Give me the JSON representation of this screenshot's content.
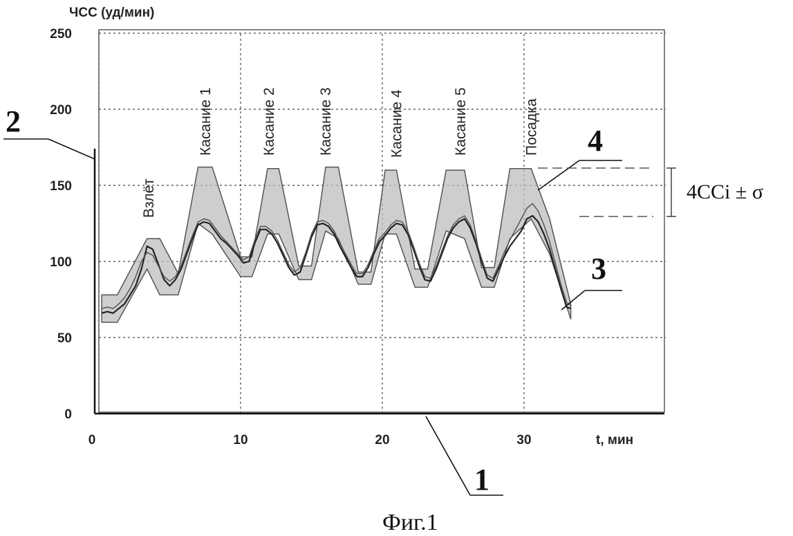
{
  "figure": {
    "caption": "Фиг.1",
    "stat_label": "4CCi ± σ",
    "ref_labels": [
      "1",
      "2",
      "3",
      "4"
    ]
  },
  "chart_data": {
    "type": "line",
    "ylabel": "ЧСС (уд/мин)",
    "xlabel": "t, мин",
    "xlim": [
      0,
      40
    ],
    "ylim": [
      0,
      250
    ],
    "x_ticks": [
      "0",
      "10",
      "20",
      "30"
    ],
    "y_ticks": [
      "0",
      "50",
      "100",
      "150",
      "200",
      "250"
    ],
    "grid": true,
    "annotations": [
      {
        "text": "Взлёт",
        "x": 3.5
      },
      {
        "text": "Касание 1",
        "x": 7.5
      },
      {
        "text": "Касание  2",
        "x": 12
      },
      {
        "text": "Касание 3",
        "x": 16
      },
      {
        "text": "Касание 4",
        "x": 21
      },
      {
        "text": "Касание 5",
        "x": 25.5
      },
      {
        "text": "Посадка",
        "x": 30.5
      }
    ],
    "band": {
      "x": [
        0.2,
        1.3,
        3.4,
        4.3,
        5.6,
        7.0,
        8.0,
        10.0,
        10.8,
        11.9,
        12.7,
        14.1,
        15.0,
        16.0,
        16.9,
        18.3,
        19.2,
        20.2,
        21.0,
        22.3,
        23.2,
        24.5,
        25.8,
        27.0,
        27.9,
        29.0,
        30.5,
        31.8,
        33.3
      ],
      "upper": [
        78,
        78,
        115,
        115,
        92,
        162,
        162,
        103,
        103,
        161,
        161,
        97,
        97,
        162,
        162,
        93,
        93,
        160,
        160,
        95,
        95,
        160,
        160,
        96,
        96,
        161,
        161,
        128,
        72
      ],
      "lower": [
        60,
        60,
        95,
        78,
        78,
        125,
        118,
        90,
        90,
        118,
        118,
        88,
        88,
        120,
        115,
        85,
        85,
        118,
        118,
        83,
        83,
        120,
        115,
        83,
        83,
        115,
        128,
        105,
        62
      ]
    },
    "series": [
      {
        "x": [
          0.2,
          0.6,
          1.0,
          1.4,
          1.8,
          2.2,
          2.6,
          3.0,
          3.4,
          3.8,
          4.2,
          4.6,
          5.0,
          5.4,
          5.8,
          6.2,
          6.6,
          7.0,
          7.4,
          7.8,
          8.2,
          8.6,
          9.0,
          9.4,
          9.8,
          10.2,
          10.6,
          11.0,
          11.4,
          11.8,
          12.2,
          12.6,
          13.0,
          13.4,
          13.8,
          14.2,
          14.6,
          15.0,
          15.4,
          15.8,
          16.2,
          16.6,
          17.0,
          17.4,
          17.8,
          18.2,
          18.6,
          19.0,
          19.4,
          19.8,
          20.2,
          20.6,
          21.0,
          21.4,
          21.8,
          22.2,
          22.6,
          23.0,
          23.4,
          23.8,
          24.2,
          24.6,
          25.0,
          25.4,
          25.8,
          26.2,
          26.6,
          27.0,
          27.4,
          27.8,
          28.2,
          28.6,
          29.0,
          29.4,
          29.8,
          30.2,
          30.6,
          31.0,
          31.4,
          31.8,
          32.2,
          32.6,
          33.0,
          33.3
        ],
        "values": [
          66,
          67,
          66,
          69,
          72,
          78,
          84,
          95,
          110,
          108,
          98,
          88,
          84,
          88,
          95,
          105,
          115,
          124,
          126,
          125,
          120,
          115,
          112,
          108,
          104,
          99,
          100,
          112,
          121,
          121,
          118,
          112,
          104,
          96,
          91,
          93,
          104,
          116,
          124,
          125,
          123,
          118,
          110,
          103,
          96,
          90,
          90,
          96,
          105,
          113,
          117,
          122,
          125,
          124,
          118,
          108,
          97,
          88,
          87,
          95,
          105,
          115,
          122,
          126,
          128,
          122,
          112,
          100,
          89,
          87,
          95,
          103,
          110,
          115,
          120,
          128,
          130,
          126,
          118,
          108,
          95,
          82,
          70,
          69
        ]
      },
      {
        "x": [
          0.2,
          0.6,
          1.0,
          1.4,
          1.8,
          2.2,
          2.6,
          3.0,
          3.4,
          3.8,
          4.2,
          4.6,
          5.0,
          5.4,
          5.8,
          6.2,
          6.6,
          7.0,
          7.4,
          7.8,
          8.2,
          8.6,
          9.0,
          9.4,
          9.8,
          10.2,
          10.6,
          11.0,
          11.4,
          11.8,
          12.2,
          12.6,
          13.0,
          13.4,
          13.8,
          14.2,
          14.6,
          15.0,
          15.4,
          15.8,
          16.2,
          16.6,
          17.0,
          17.4,
          17.8,
          18.2,
          18.6,
          19.0,
          19.4,
          19.8,
          20.2,
          20.6,
          21.0,
          21.4,
          21.8,
          22.2,
          22.6,
          23.0,
          23.4,
          23.8,
          24.2,
          24.6,
          25.0,
          25.4,
          25.8,
          26.2,
          26.6,
          27.0,
          27.4,
          27.8,
          28.2,
          28.6,
          29.0,
          29.4,
          29.8,
          30.2,
          30.6,
          31.0,
          31.4,
          31.8,
          32.2,
          32.6,
          33.0,
          33.3
        ],
        "values": [
          69,
          70,
          69,
          72,
          76,
          82,
          90,
          100,
          106,
          104,
          97,
          90,
          87,
          90,
          97,
          107,
          117,
          126,
          128,
          127,
          122,
          117,
          113,
          109,
          105,
          101,
          103,
          114,
          123,
          123,
          120,
          114,
          106,
          98,
          93,
          96,
          106,
          118,
          126,
          127,
          125,
          120,
          112,
          105,
          98,
          92,
          92,
          98,
          107,
          115,
          119,
          124,
          127,
          126,
          120,
          110,
          99,
          90,
          89,
          97,
          107,
          117,
          124,
          128,
          130,
          124,
          114,
          102,
          91,
          89,
          97,
          106,
          114,
          121,
          128,
          135,
          138,
          133,
          124,
          113,
          99,
          85,
          73,
          71
        ]
      }
    ]
  }
}
